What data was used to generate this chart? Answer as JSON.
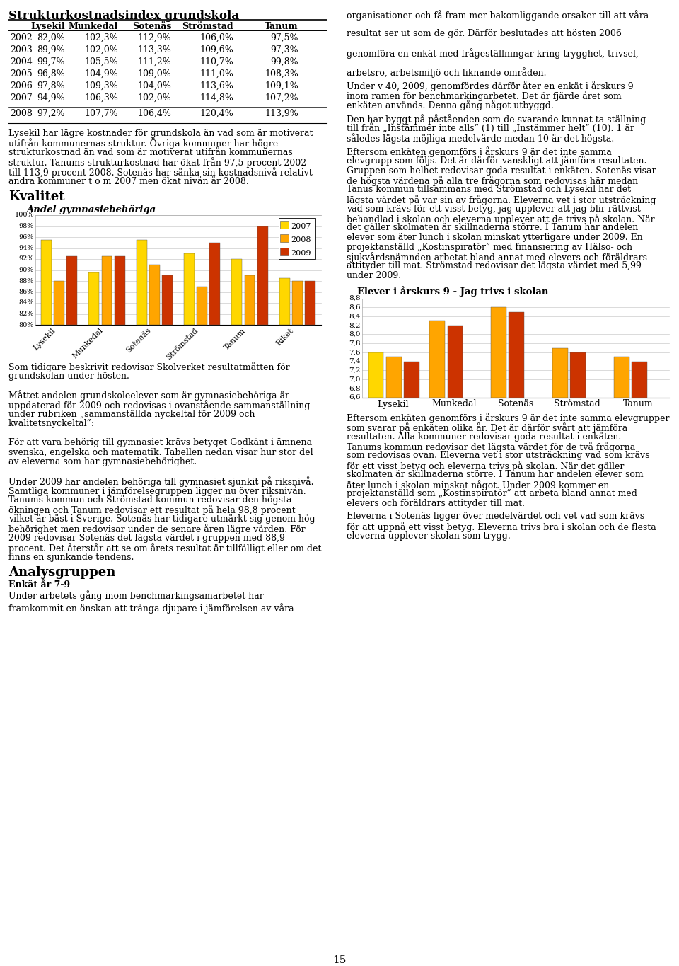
{
  "page_bg": "#ffffff",
  "table_title": "Strukturkostnadsindex grundskola",
  "table_headers": [
    "",
    "Lysekil",
    "Munkedal",
    "Sotenäs",
    "Strömstad",
    "Tanum"
  ],
  "table_rows": [
    [
      "2002",
      "82,0%",
      "102,3%",
      "112,9%",
      "106,0%",
      "97,5%"
    ],
    [
      "2003",
      "89,9%",
      "102,0%",
      "113,3%",
      "109,6%",
      "97,3%"
    ],
    [
      "2004",
      "99,7%",
      "105,5%",
      "111,2%",
      "110,7%",
      "99,8%"
    ],
    [
      "2005",
      "96,8%",
      "104,9%",
      "109,0%",
      "111,0%",
      "108,3%"
    ],
    [
      "2006",
      "97,8%",
      "109,3%",
      "104,0%",
      "113,6%",
      "109,1%"
    ],
    [
      "2007",
      "94,9%",
      "106,3%",
      "102,0%",
      "114,8%",
      "107,2%"
    ],
    [
      "2008",
      "97,2%",
      "107,7%",
      "106,4%",
      "120,4%",
      "113,9%"
    ]
  ],
  "kvalitet_title": "Kvalitet",
  "chart1_title": "Andel gymnasiebehöriga",
  "chart1_categories": [
    "Lysekil",
    "Munkedal",
    "Sotenäs",
    "Strömstad",
    "Tanum",
    "Riket"
  ],
  "chart1_yticks": [
    80,
    82,
    84,
    86,
    88,
    90,
    92,
    94,
    96,
    98,
    100
  ],
  "chart1_ytick_labels": [
    "80%",
    "82%",
    "84%",
    "86%",
    "88%",
    "90%",
    "92%",
    "94%",
    "96%",
    "98%",
    "100%"
  ],
  "chart1_data": {
    "2007": [
      95.5,
      89.5,
      95.5,
      93.0,
      92.0,
      88.5
    ],
    "2008": [
      88.0,
      92.5,
      91.0,
      87.0,
      89.0,
      88.0
    ],
    "2009": [
      92.5,
      92.5,
      89.0,
      95.0,
      98.0,
      88.0
    ]
  },
  "chart1_colors": {
    "2007": "#FFD700",
    "2008": "#FFA500",
    "2009": "#CC3300"
  },
  "analysgruppen_title": "Analysgruppen",
  "enkat_subtitle": "Enkät år 7-9",
  "chart2_title": "Elever i årskurs 9 - Jag trivs i skolan",
  "chart2_categories": [
    "Lysekil",
    "Munkedal",
    "Sotenäs",
    "Strömstad",
    "Tanum"
  ],
  "chart2_yticks": [
    6.6,
    6.8,
    7.0,
    7.2,
    7.4,
    7.6,
    7.8,
    8.0,
    8.2,
    8.4,
    8.6,
    8.8
  ],
  "chart2_data_2007": [
    7.6,
    null,
    null,
    null,
    null
  ],
  "chart2_data_2008": [
    7.5,
    8.3,
    8.6,
    7.7,
    7.5
  ],
  "chart2_data_2009": [
    7.4,
    8.2,
    8.5,
    7.6,
    7.4
  ],
  "chart2_colors": {
    "2007": "#FFD700",
    "2008": "#FFA500",
    "2009": "#CC3300"
  },
  "page_number": "15"
}
